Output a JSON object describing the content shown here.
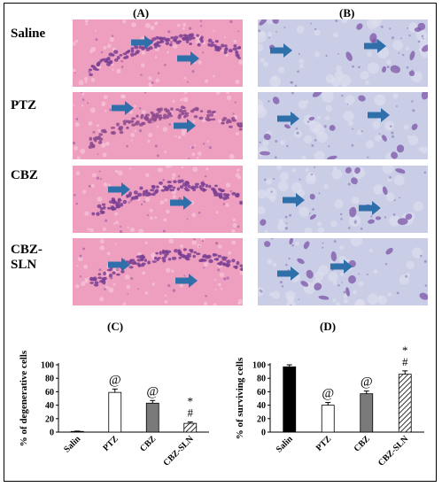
{
  "panels": {
    "A": "(A)",
    "B": "(B)",
    "C": "(C)",
    "D": "(D)"
  },
  "rows": [
    {
      "label": "Saline"
    },
    {
      "label": "PTZ"
    },
    {
      "label": "CBZ"
    },
    {
      "label": "CBZ-SLN"
    }
  ],
  "colors": {
    "he_stain": "#ee9fc0",
    "nissl_stain": "#c9cde6",
    "arrow": "#2f70ab",
    "cell_purple": "#7d55a8"
  },
  "chart_data": [
    {
      "type": "bar",
      "panel": "(C)",
      "ylabel": "% of degenerative cells",
      "categories": [
        "Salin",
        "PTZ",
        "CBZ",
        "CBZ-SLN"
      ],
      "values": [
        1,
        59,
        43,
        13
      ],
      "errors": [
        0.5,
        5,
        4,
        2
      ],
      "fills": [
        "black",
        "white",
        "gray",
        "hatch"
      ],
      "annotations": [
        "",
        "@",
        "@",
        "*\n#"
      ],
      "ylim": [
        0,
        100
      ],
      "yticks": [
        0,
        20,
        40,
        60,
        80,
        100
      ]
    },
    {
      "type": "bar",
      "panel": "(D)",
      "ylabel": "% of surviving cells",
      "categories": [
        "Salin",
        "PTZ",
        "CBZ",
        "CBZ-SLN"
      ],
      "values": [
        97,
        40,
        57,
        86
      ],
      "errors": [
        3,
        4,
        4,
        5
      ],
      "fills": [
        "black",
        "white",
        "gray",
        "hatch"
      ],
      "annotations": [
        "",
        "@",
        "@",
        "*\n#"
      ],
      "ylim": [
        0,
        100
      ],
      "yticks": [
        0,
        20,
        40,
        60,
        80,
        100
      ]
    }
  ]
}
